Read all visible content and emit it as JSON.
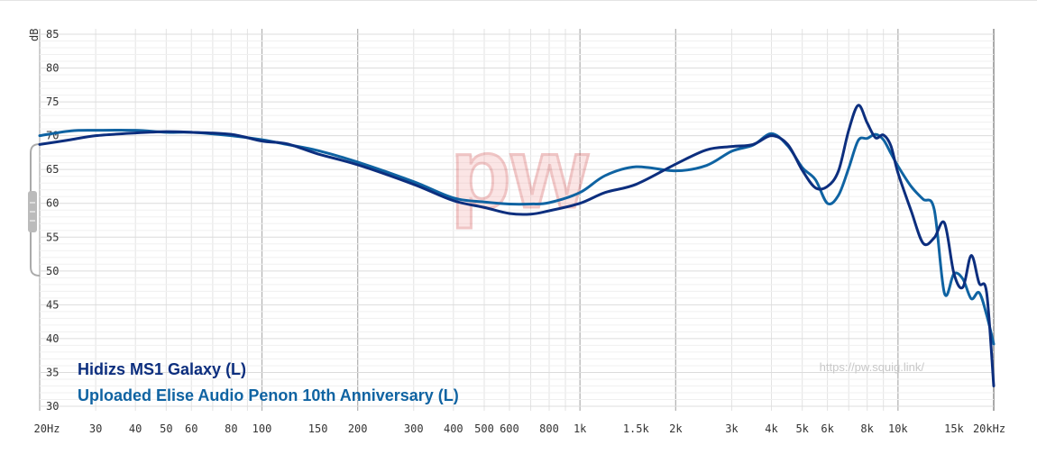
{
  "chart_data": {
    "type": "line",
    "title": "",
    "xlabel": "",
    "ylabel": "dB",
    "xscale": "log",
    "xlim": [
      20,
      20000
    ],
    "ylim": [
      30,
      85
    ],
    "grid": true,
    "legend_position": "bottom-left",
    "y_ticks": [
      85,
      80,
      75,
      70,
      65,
      60,
      55,
      50,
      45,
      40,
      35,
      30
    ],
    "x_ticks": [
      {
        "f": 20,
        "label": "20Hz"
      },
      {
        "f": 30,
        "label": "30"
      },
      {
        "f": 40,
        "label": "40"
      },
      {
        "f": 50,
        "label": "50"
      },
      {
        "f": 60,
        "label": "60"
      },
      {
        "f": 80,
        "label": "80"
      },
      {
        "f": 100,
        "label": "100"
      },
      {
        "f": 150,
        "label": "150"
      },
      {
        "f": 200,
        "label": "200"
      },
      {
        "f": 300,
        "label": "300"
      },
      {
        "f": 400,
        "label": "400"
      },
      {
        "f": 500,
        "label": "500"
      },
      {
        "f": 600,
        "label": "600"
      },
      {
        "f": 800,
        "label": "800"
      },
      {
        "f": 1000,
        "label": "1k"
      },
      {
        "f": 1500,
        "label": "1.5k"
      },
      {
        "f": 2000,
        "label": "2k"
      },
      {
        "f": 3000,
        "label": "3k"
      },
      {
        "f": 4000,
        "label": "4k"
      },
      {
        "f": 5000,
        "label": "5k"
      },
      {
        "f": 6000,
        "label": "6k"
      },
      {
        "f": 8000,
        "label": "8k"
      },
      {
        "f": 10000,
        "label": "10k"
      },
      {
        "f": 15000,
        "label": "15k"
      },
      {
        "f": 20000,
        "label": "20kHz"
      }
    ],
    "series": [
      {
        "name": "Hidizs MS1 Galaxy (L)",
        "color": "#0c2e7e",
        "x": [
          20,
          25,
          30,
          40,
          50,
          60,
          80,
          100,
          120,
          150,
          200,
          300,
          400,
          500,
          600,
          700,
          800,
          1000,
          1200,
          1500,
          2000,
          2500,
          3000,
          3500,
          4000,
          4500,
          5000,
          5500,
          6000,
          6500,
          7000,
          7500,
          8000,
          8500,
          9000,
          9500,
          10000,
          11000,
          12000,
          13000,
          14000,
          15000,
          16000,
          17000,
          18000,
          19000,
          20000
        ],
        "y": [
          68.7,
          69.4,
          70.0,
          70.4,
          70.6,
          70.5,
          70.2,
          69.2,
          68.8,
          67.3,
          65.7,
          62.8,
          60.4,
          59.4,
          58.5,
          58.4,
          58.9,
          60.0,
          61.6,
          62.8,
          65.8,
          67.9,
          68.4,
          68.7,
          70.0,
          68.7,
          64.9,
          62.3,
          62.5,
          64.8,
          70.8,
          74.5,
          71.9,
          69.7,
          70.1,
          68.5,
          64.5,
          58.9,
          54.1,
          54.9,
          57.1,
          49.6,
          47.6,
          52.3,
          48.2,
          46.8,
          33.0
        ]
      },
      {
        "name": "Uploaded Elise Audio Penon 10th Anniversary (L)",
        "color": "#0f63a2",
        "x": [
          20,
          25,
          30,
          40,
          50,
          60,
          80,
          100,
          120,
          150,
          200,
          300,
          400,
          500,
          600,
          700,
          800,
          1000,
          1200,
          1500,
          2000,
          2500,
          3000,
          3500,
          4000,
          4500,
          5000,
          5500,
          6000,
          6500,
          7000,
          7500,
          8000,
          8500,
          9000,
          9500,
          10000,
          11000,
          12000,
          13000,
          14000,
          15000,
          16000,
          17000,
          18000,
          19000,
          20000
        ],
        "y": [
          70.0,
          70.7,
          70.8,
          70.8,
          70.5,
          70.5,
          70.0,
          69.4,
          68.7,
          67.8,
          66.1,
          63.2,
          60.8,
          60.2,
          59.9,
          59.9,
          60.1,
          61.6,
          64.1,
          65.4,
          64.8,
          65.6,
          67.7,
          68.6,
          70.3,
          68.5,
          65.3,
          63.5,
          60.0,
          61.2,
          65.2,
          69.3,
          69.6,
          70.2,
          69.4,
          67.4,
          65.5,
          62.5,
          60.6,
          59.1,
          46.7,
          49.6,
          48.8,
          45.9,
          46.8,
          43.5,
          39.2
        ]
      }
    ],
    "watermark_text": "pw",
    "watermark_url": "https://pw.squig.link/"
  }
}
